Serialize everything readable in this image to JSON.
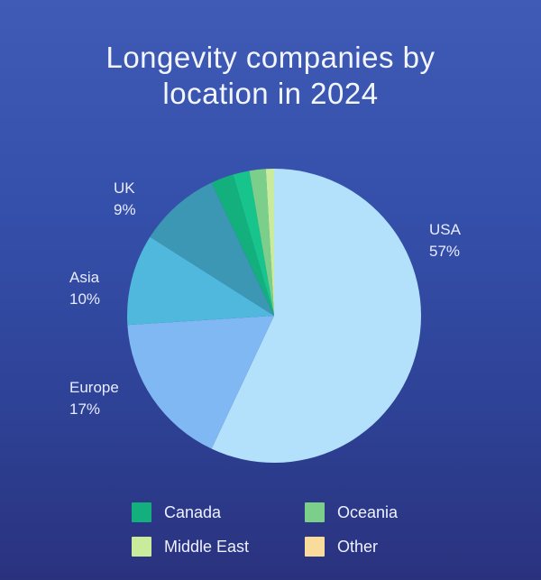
{
  "chart_data": {
    "type": "pie",
    "title_lines": [
      "Longevity companies by",
      "location in 2024"
    ],
    "slices": [
      {
        "name": "USA",
        "value": 57,
        "label": "57%",
        "color": "#b3e0fa"
      },
      {
        "name": "Europe",
        "value": 17,
        "label": "17%",
        "color": "#7fb8f2"
      },
      {
        "name": "Asia",
        "value": 10,
        "label": "10%",
        "color": "#50b8dc"
      },
      {
        "name": "UK",
        "value": 9,
        "label": "9%",
        "color": "#3b97b3"
      },
      {
        "name": "Canada",
        "value": 2.5,
        "color": "#13b07e"
      },
      {
        "name": "Canada",
        "value": 1.8,
        "color": "#17c48b"
      },
      {
        "name": "Oceania",
        "value": 1.8,
        "color": "#7ccf8a"
      },
      {
        "name": "Middle East",
        "value": 0.9,
        "color": "#c8ec9c"
      }
    ],
    "legend": [
      {
        "name": "Canada",
        "color": "#13b07e"
      },
      {
        "name": "Oceania",
        "color": "#7ccf8a"
      },
      {
        "name": "Middle East",
        "color": "#c8ec9c"
      },
      {
        "name": "Other",
        "color": "#f9dc9c"
      }
    ],
    "legend_position": "bottom"
  }
}
